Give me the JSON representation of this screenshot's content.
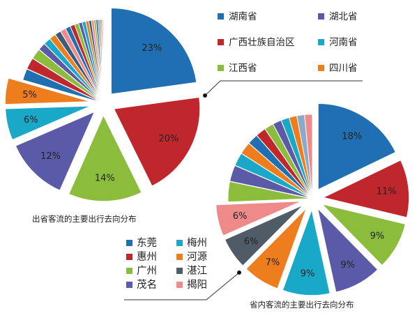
{
  "chart_data": [
    {
      "type": "pie",
      "title": "出省客流的主要出行去向分布",
      "legend": [
        {
          "label": "湖南省",
          "color": "#1f6fb2"
        },
        {
          "label": "湖北省",
          "color": "#5a5aa8"
        },
        {
          "label": "广西壮族自治区",
          "color": "#c0272d"
        },
        {
          "label": "河南省",
          "color": "#1aa8c8"
        },
        {
          "label": "江西省",
          "color": "#8cbc3c"
        },
        {
          "label": "四川省",
          "color": "#ee7d1d"
        }
      ],
      "slices": [
        {
          "value": 23,
          "label": "23%",
          "color": "#1f6fb2"
        },
        {
          "value": 20,
          "label": "20%",
          "color": "#c0272d"
        },
        {
          "value": 14,
          "label": "14%",
          "color": "#8cbc3c"
        },
        {
          "value": 12,
          "label": "12%",
          "color": "#5a5aa8"
        },
        {
          "value": 6,
          "label": "6%",
          "color": "#1aa8c8"
        },
        {
          "value": 5,
          "label": "5%",
          "color": "#ee7d1d"
        },
        {
          "value": 2.3,
          "color": "#1f6fb2"
        },
        {
          "value": 2.3,
          "color": "#c0272d"
        },
        {
          "value": 2.1,
          "color": "#8cbc3c"
        },
        {
          "value": 1.5,
          "color": "#5a5aa8"
        },
        {
          "value": 1.4,
          "color": "#1aa8c8"
        },
        {
          "value": 1.3,
          "color": "#ee7d1d"
        },
        {
          "value": 1.2,
          "color": "#3d5a7a"
        },
        {
          "value": 1.1,
          "color": "#ef8a8a"
        },
        {
          "value": 1.0,
          "color": "#1f6fb2"
        },
        {
          "value": 0.9,
          "color": "#c0272d"
        },
        {
          "value": 0.8,
          "color": "#8cbc3c"
        },
        {
          "value": 0.7,
          "color": "#5a5aa8"
        },
        {
          "value": 0.7,
          "color": "#1aa8c8"
        },
        {
          "value": 0.6,
          "color": "#ee7d1d"
        },
        {
          "value": 0.5,
          "color": "#3d5a7a"
        },
        {
          "value": 0.5,
          "color": "#ef8a8a"
        },
        {
          "value": 0.4,
          "color": "#8cbc3c"
        },
        {
          "value": 0.4,
          "color": "#5a5aa8"
        },
        {
          "value": 0.3,
          "color": "#1aa8c8"
        },
        {
          "value": 0.3,
          "color": "#ee7d1d"
        },
        {
          "value": 0.2,
          "color": "#3d5a7a"
        },
        {
          "value": 0.2,
          "color": "#ef8a8a"
        }
      ]
    },
    {
      "type": "pie",
      "title": "省内客流的主要出行去向分布",
      "legend": [
        {
          "label": "东莞",
          "color": "#1f6fb2"
        },
        {
          "label": "梅州",
          "color": "#1aa8c8"
        },
        {
          "label": "惠州",
          "color": "#c0272d"
        },
        {
          "label": "河源",
          "color": "#ee7d1d"
        },
        {
          "label": "广州",
          "color": "#8cbc3c"
        },
        {
          "label": "湛江",
          "color": "#4f5b66"
        },
        {
          "label": "茂名",
          "color": "#5a5aa8"
        },
        {
          "label": "揭阳",
          "color": "#ef8a8a"
        }
      ],
      "slices": [
        {
          "value": 18,
          "label": "18%",
          "color": "#1f6fb2"
        },
        {
          "value": 11,
          "label": "11%",
          "color": "#c0272d"
        },
        {
          "value": 9,
          "label": "9%",
          "color": "#8cbc3c"
        },
        {
          "value": 9,
          "label": "9%",
          "color": "#5a5aa8"
        },
        {
          "value": 9,
          "label": "9%",
          "color": "#1aa8c8"
        },
        {
          "value": 7,
          "label": "7%",
          "color": "#ee7d1d"
        },
        {
          "value": 6,
          "label": "6%",
          "color": "#4f5b66"
        },
        {
          "value": 6,
          "label": "6%",
          "color": "#ef8a8a"
        },
        {
          "value": 4,
          "color": "#8cbc3c"
        },
        {
          "value": 3.2,
          "color": "#5a5aa8"
        },
        {
          "value": 2.6,
          "color": "#1aa8c8"
        },
        {
          "value": 2.4,
          "color": "#ee7d1d"
        },
        {
          "value": 2.1,
          "color": "#1f6fb2"
        },
        {
          "value": 2.0,
          "color": "#c0272d"
        },
        {
          "value": 1.8,
          "color": "#8cbc3c"
        },
        {
          "value": 1.7,
          "color": "#5a5aa8"
        },
        {
          "value": 1.6,
          "color": "#1aa8c8"
        },
        {
          "value": 1.5,
          "color": "#ee7d1d"
        },
        {
          "value": 1.5,
          "color": "#8fa8c8"
        },
        {
          "value": 1.5,
          "color": "#ef8a8a"
        }
      ]
    }
  ]
}
